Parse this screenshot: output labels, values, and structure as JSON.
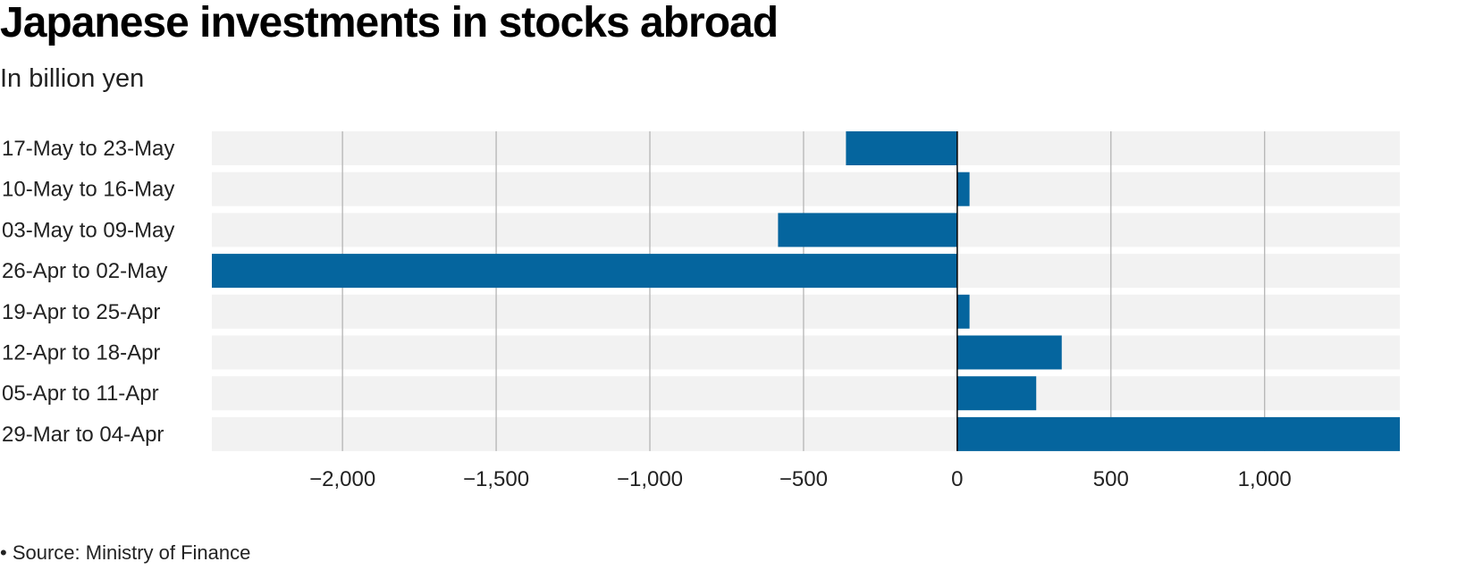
{
  "chart_data": {
    "type": "bar",
    "orientation": "horizontal",
    "title": "Japanese investments in stocks abroad",
    "subtitle": "In billion yen",
    "categories": [
      "17-May to 23-May",
      "10-May to 16-May",
      "03-May to 09-May",
      "26-Apr to 02-May",
      "19-Apr to 25-Apr",
      "12-Apr to 18-Apr",
      "05-Apr to 11-Apr",
      "29-Mar to 04-Apr"
    ],
    "values": [
      -362,
      40,
      -583,
      -2425,
      40,
      340,
      257,
      1440
    ],
    "xlim": [
      -2425,
      1440
    ],
    "xticks": [
      -2000,
      -1500,
      -1000,
      -500,
      0,
      500,
      1000
    ],
    "xtick_labels": [
      "−2,000",
      "−1,500",
      "−1,000",
      "−500",
      "0",
      "500",
      "1,000"
    ],
    "grid": true,
    "bar_color": "#05659e",
    "band_color": "#f2f2f2"
  },
  "footer": {
    "source": "• Source: Ministry of Finance"
  }
}
